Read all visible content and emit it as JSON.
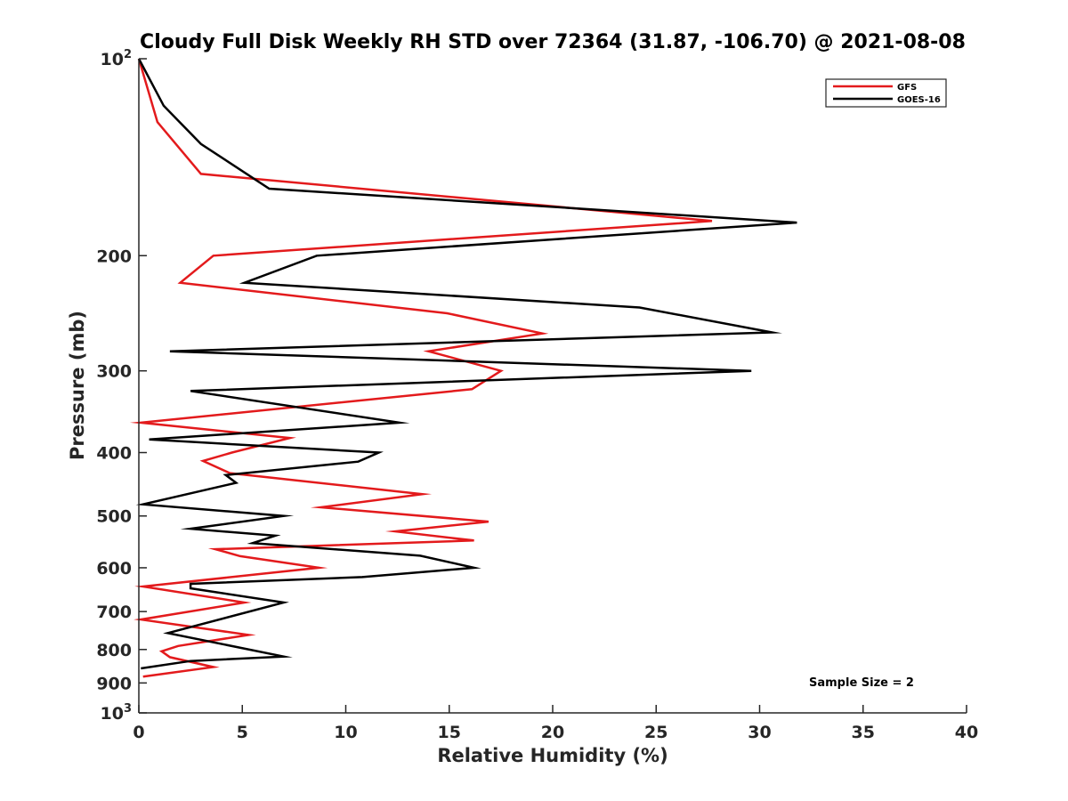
{
  "chart_data": {
    "type": "line",
    "title": "Cloudy Full Disk Weekly RH STD over 72364 (31.87, -106.70) @ 2021-08-08",
    "xlabel": "Relative Humidity (%)",
    "ylabel": "Pressure (mb)",
    "xlim": [
      0,
      40
    ],
    "ylim": [
      100,
      1000
    ],
    "y_scale": "log",
    "y_reversed": true,
    "grid": false,
    "legend_position": "top-right",
    "x_ticks": [
      "0",
      "5",
      "10",
      "15",
      "20",
      "25",
      "30",
      "35",
      "40"
    ],
    "y_ticks": [
      {
        "value": 100,
        "base": "10",
        "exp": "2"
      },
      {
        "value": 200,
        "label": "200"
      },
      {
        "value": 300,
        "label": "300"
      },
      {
        "value": 400,
        "label": "400"
      },
      {
        "value": 500,
        "label": "500"
      },
      {
        "value": 600,
        "label": "600"
      },
      {
        "value": 700,
        "label": "700"
      },
      {
        "value": 800,
        "label": "800"
      },
      {
        "value": 900,
        "label": "900"
      },
      {
        "value": 1000,
        "base": "10",
        "exp": "3"
      }
    ],
    "series": [
      {
        "name": "GFS",
        "color": "#e31a1c",
        "points": [
          [
            0,
            100
          ],
          [
            0.9,
            125
          ],
          [
            3.0,
            150
          ],
          [
            27.7,
            177
          ],
          [
            3.6,
            200
          ],
          [
            2.0,
            220
          ],
          [
            14.9,
            245
          ],
          [
            19.5,
            263
          ],
          [
            14.0,
            280
          ],
          [
            17.5,
            300
          ],
          [
            16.1,
            320
          ],
          [
            0.1,
            360
          ],
          [
            7.3,
            380
          ],
          [
            4.5,
            400
          ],
          [
            3.1,
            412
          ],
          [
            4.4,
            430
          ],
          [
            13.7,
            463
          ],
          [
            8.8,
            485
          ],
          [
            16.9,
            510
          ],
          [
            12.4,
            528
          ],
          [
            16.2,
            545
          ],
          [
            3.7,
            562
          ],
          [
            4.9,
            576
          ],
          [
            8.7,
            600
          ],
          [
            0.2,
            641
          ],
          [
            5.1,
            678
          ],
          [
            0.1,
            720
          ],
          [
            5.3,
            760
          ],
          [
            1.9,
            790
          ],
          [
            1.1,
            805
          ],
          [
            1.5,
            822
          ],
          [
            3.6,
            851
          ],
          [
            0.2,
            880
          ]
        ]
      },
      {
        "name": "GOES-16",
        "color": "#000000",
        "points": [
          [
            0,
            100
          ],
          [
            1.2,
            118
          ],
          [
            3.0,
            135
          ],
          [
            6.3,
            158
          ],
          [
            31.8,
            178
          ],
          [
            8.6,
            200
          ],
          [
            5.1,
            220
          ],
          [
            24.2,
            240
          ],
          [
            30.6,
            262
          ],
          [
            1.5,
            280
          ],
          [
            29.6,
            300
          ],
          [
            2.5,
            322
          ],
          [
            12.6,
            360
          ],
          [
            0.5,
            382
          ],
          [
            11.6,
            400
          ],
          [
            10.6,
            413
          ],
          [
            4.2,
            433
          ],
          [
            4.7,
            445
          ],
          [
            0.2,
            480
          ],
          [
            7.0,
            500
          ],
          [
            2.5,
            523
          ],
          [
            6.6,
            536
          ],
          [
            5.5,
            550
          ],
          [
            13.6,
            575
          ],
          [
            16.2,
            600
          ],
          [
            10.8,
            620
          ],
          [
            2.5,
            635
          ],
          [
            2.5,
            645
          ],
          [
            7.0,
            678
          ],
          [
            1.4,
            755
          ],
          [
            7.0,
            820
          ],
          [
            2.5,
            833
          ],
          [
            0.1,
            855
          ]
        ]
      }
    ],
    "legend": [
      {
        "label": "GFS",
        "color": "#e31a1c"
      },
      {
        "label": "GOES-16",
        "color": "#000000"
      }
    ],
    "annotation": "Sample Size = 2"
  }
}
